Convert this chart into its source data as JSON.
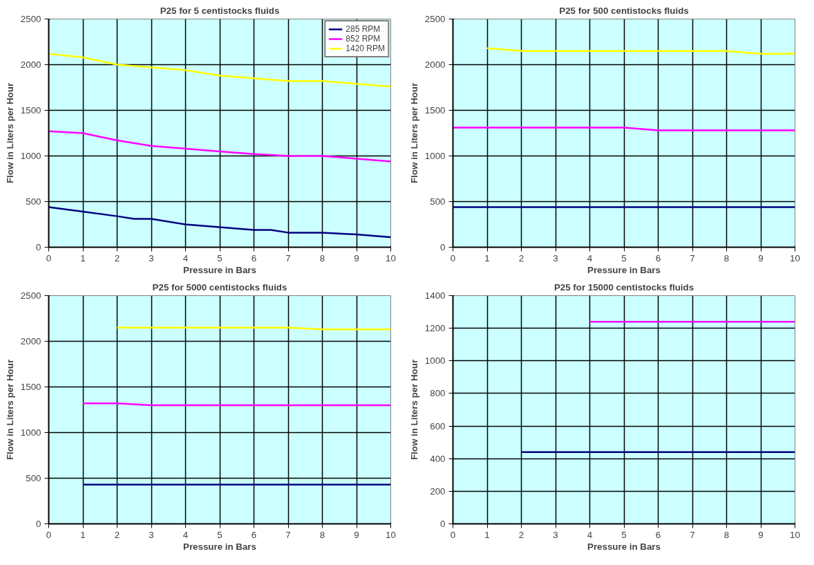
{
  "chart_data": [
    {
      "type": "line",
      "title": "P25 for 5 centistocks fluids",
      "xlabel": "Pressure in Bars",
      "ylabel": "Flow in Liters per Hour",
      "xlim": [
        0,
        10
      ],
      "ylim": [
        0,
        2500
      ],
      "xticks": [
        0,
        1,
        2,
        3,
        4,
        5,
        6,
        7,
        8,
        9,
        10
      ],
      "yticks": [
        0,
        500,
        1000,
        1500,
        2000,
        2500
      ],
      "grid": true,
      "legend": "top right",
      "marker": "none",
      "line_style": "solid",
      "series": [
        {
          "name": "285 RPM",
          "color": "#000080",
          "x": [
            0,
            1,
            2,
            2.5,
            3,
            4,
            5,
            6,
            6.5,
            7,
            8,
            9,
            10
          ],
          "values": [
            440,
            390,
            340,
            310,
            310,
            250,
            220,
            190,
            190,
            160,
            160,
            140,
            110
          ]
        },
        {
          "name": "852 RPM",
          "color": "#ff00ff",
          "x": [
            0,
            1,
            2,
            3,
            4,
            5,
            6,
            7,
            8,
            9,
            10
          ],
          "values": [
            1270,
            1250,
            1170,
            1110,
            1080,
            1050,
            1020,
            1000,
            1000,
            970,
            940
          ]
        },
        {
          "name": "1420 RPM",
          "color": "#ffff00",
          "x": [
            0,
            1,
            2,
            3,
            4,
            5,
            6,
            7,
            8,
            9,
            10
          ],
          "values": [
            2120,
            2080,
            2000,
            1970,
            1940,
            1880,
            1850,
            1820,
            1820,
            1790,
            1760
          ]
        }
      ]
    },
    {
      "type": "line",
      "title": "P25 for 500 centistocks fluids",
      "xlabel": "Pressure in Bars",
      "ylabel": "Flow in Liters per Hour",
      "xlim": [
        0,
        10
      ],
      "ylim": [
        0,
        2500
      ],
      "xticks": [
        0,
        1,
        2,
        3,
        4,
        5,
        6,
        7,
        8,
        9,
        10
      ],
      "yticks": [
        0,
        500,
        1000,
        1500,
        2000,
        2500
      ],
      "grid": true,
      "marker": "none",
      "line_style": "solid",
      "series": [
        {
          "color": "#000080",
          "x": [
            0,
            1,
            2,
            3,
            4,
            5,
            6,
            7,
            8,
            9,
            10
          ],
          "values": [
            440,
            440,
            440,
            440,
            440,
            440,
            440,
            440,
            440,
            440,
            440
          ]
        },
        {
          "color": "#ff00ff",
          "x": [
            0,
            1,
            2,
            3,
            4,
            5,
            6,
            7,
            8,
            9,
            10
          ],
          "values": [
            1310,
            1310,
            1310,
            1310,
            1310,
            1310,
            1280,
            1280,
            1280,
            1280,
            1280
          ]
        },
        {
          "color": "#ffff00",
          "x": [
            1,
            2,
            3,
            4,
            5,
            6,
            7,
            8,
            9,
            10
          ],
          "values": [
            2180,
            2150,
            2150,
            2150,
            2150,
            2150,
            2150,
            2150,
            2120,
            2120
          ]
        }
      ]
    },
    {
      "type": "line",
      "title": "P25 for 5000 centistocks fluids",
      "xlabel": "Pressure in Bars",
      "ylabel": "Flow in Liters per Hour",
      "xlim": [
        0,
        10
      ],
      "ylim": [
        0,
        2500
      ],
      "xticks": [
        0,
        1,
        2,
        3,
        4,
        5,
        6,
        7,
        8,
        9,
        10
      ],
      "yticks": [
        0,
        500,
        1000,
        1500,
        2000,
        2500
      ],
      "grid": true,
      "marker": "none",
      "line_style": "solid",
      "series": [
        {
          "color": "#000080",
          "x": [
            1,
            2,
            3,
            4,
            5,
            6,
            7,
            8,
            9,
            10
          ],
          "values": [
            430,
            430,
            430,
            430,
            430,
            430,
            430,
            430,
            430,
            430
          ]
        },
        {
          "color": "#ff00ff",
          "x": [
            1,
            2,
            3,
            4,
            5,
            6,
            7,
            8,
            9,
            10
          ],
          "values": [
            1320,
            1320,
            1300,
            1300,
            1300,
            1300,
            1300,
            1300,
            1300,
            1300
          ]
        },
        {
          "color": "#ffff00",
          "x": [
            2,
            3,
            4,
            5,
            6,
            7,
            8,
            9,
            10
          ],
          "values": [
            2150,
            2150,
            2150,
            2150,
            2150,
            2150,
            2130,
            2130,
            2130
          ]
        }
      ]
    },
    {
      "type": "line",
      "title": "P25 for 15000 centistocks fluids",
      "xlabel": "Pressure in Bars",
      "ylabel": "Flow in Liters per Hour",
      "xlim": [
        0,
        10
      ],
      "ylim": [
        0,
        1400
      ],
      "xticks": [
        0,
        1,
        2,
        3,
        4,
        5,
        6,
        7,
        8,
        9,
        10
      ],
      "yticks": [
        0,
        200,
        400,
        600,
        800,
        1000,
        1200,
        1400
      ],
      "grid": true,
      "marker": "none",
      "line_style": "solid",
      "series": [
        {
          "color": "#000080",
          "x": [
            2,
            3,
            4,
            5,
            6,
            7,
            8,
            9,
            10
          ],
          "values": [
            440,
            440,
            440,
            440,
            440,
            440,
            440,
            440,
            440
          ]
        },
        {
          "color": "#ff00ff",
          "x": [
            4,
            5,
            6,
            7,
            8,
            9,
            10
          ],
          "values": [
            1240,
            1240,
            1240,
            1240,
            1240,
            1240,
            1240
          ]
        }
      ]
    }
  ]
}
